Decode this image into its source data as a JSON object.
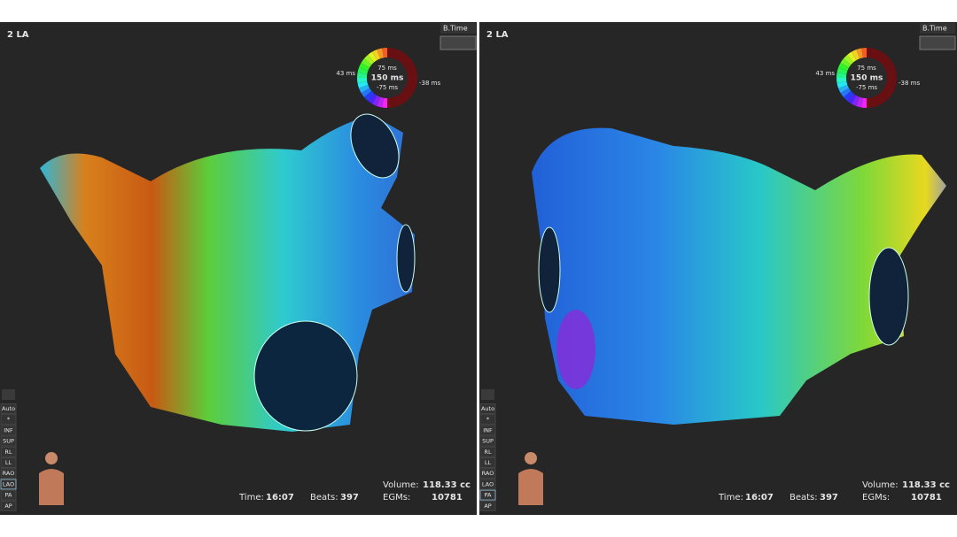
{
  "panels": [
    {
      "label": "2 LA",
      "mode": "B.Time",
      "ring": {
        "left": "43 ms",
        "top": "75 ms",
        "center": "150 ms",
        "bottom": "-75 ms",
        "right": "-38 ms"
      },
      "views": [
        "Auto",
        "*",
        "INF",
        "SUP",
        "RL",
        "LL",
        "RAO",
        "LAO",
        "PA",
        "AP"
      ],
      "active_view": 7,
      "time_label": "Time:",
      "time": "16:07",
      "beats_label": "Beats:",
      "beats": "397",
      "volume_label": "Volume:",
      "volume": "118.33 cc",
      "egms_label": "EGMs:",
      "egms": "10781"
    },
    {
      "label": "2 LA",
      "mode": "B.Time",
      "ring": {
        "left": "43 ms",
        "top": "75 ms",
        "center": "150 ms",
        "bottom": "-75 ms",
        "right": "-38 ms"
      },
      "views": [
        "Auto",
        "*",
        "INF",
        "SUP",
        "RL",
        "LL",
        "RAO",
        "LAO",
        "PA",
        "AP"
      ],
      "active_view": 8,
      "time_label": "Time:",
      "time": "16:07",
      "beats_label": "Beats:",
      "beats": "397",
      "volume_label": "Volume:",
      "volume": "118.33 cc",
      "egms_label": "EGMs:",
      "egms": "10781"
    }
  ]
}
